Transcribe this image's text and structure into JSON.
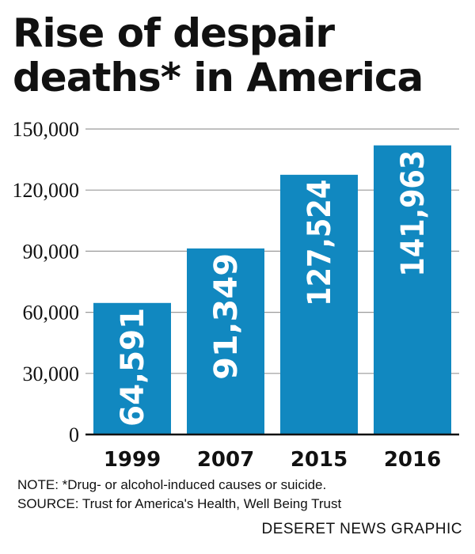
{
  "header": {
    "title_line1": "Rise of despair",
    "title_line2": "deaths* in America"
  },
  "chart_data": {
    "type": "bar",
    "categories": [
      "1999",
      "2007",
      "2015",
      "2016"
    ],
    "values": [
      64591,
      91349,
      127524,
      141963
    ],
    "value_labels": [
      "64,591",
      "91,349",
      "127,524",
      "141,963"
    ],
    "y_ticks": [
      0,
      30000,
      60000,
      90000,
      120000,
      150000
    ],
    "y_tick_labels": [
      "0",
      "30,000",
      "60,000",
      "90,000",
      "120,000",
      "150,000"
    ],
    "ylim": [
      0,
      150000
    ],
    "grid": true,
    "bar_color": "#1188c0"
  },
  "footer": {
    "note": "NOTE: *Drug- or alcohol-induced causes or suicide.",
    "source": "SOURCE: Trust for America's Health, Well Being Trust",
    "credit": "DESERET NEWS GRAPHIC"
  }
}
